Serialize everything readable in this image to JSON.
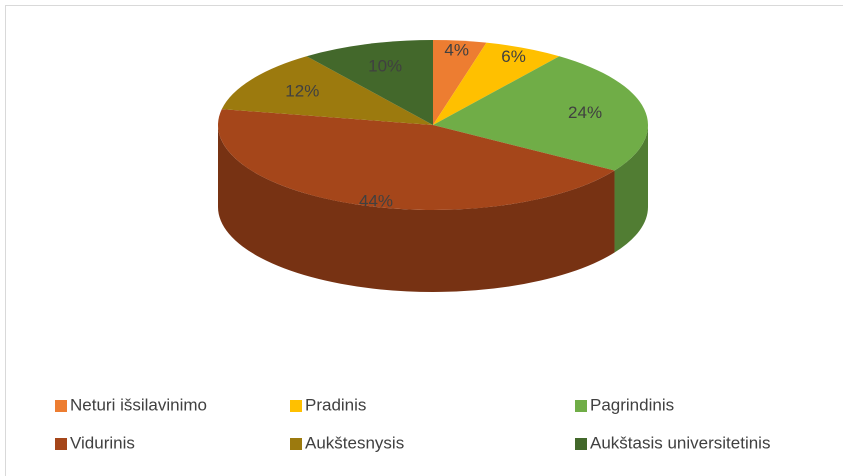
{
  "chart_data": {
    "type": "pie",
    "categories": [
      "Neturi išsilavinimo",
      "Pradinis",
      "Pagrindinis",
      "Vidurinis",
      "Aukštesnysis",
      "Aukštasis universitetinis"
    ],
    "values": [
      4,
      6,
      24,
      44,
      12,
      10
    ],
    "value_labels": [
      "4%",
      "6%",
      "24%",
      "44%",
      "12%",
      "10%"
    ],
    "colors": [
      "#ed7d31",
      "#ffc000",
      "#70ad47",
      "#a5461a",
      "#9c7a0e",
      "#43682b"
    ],
    "legend": "bottom"
  }
}
